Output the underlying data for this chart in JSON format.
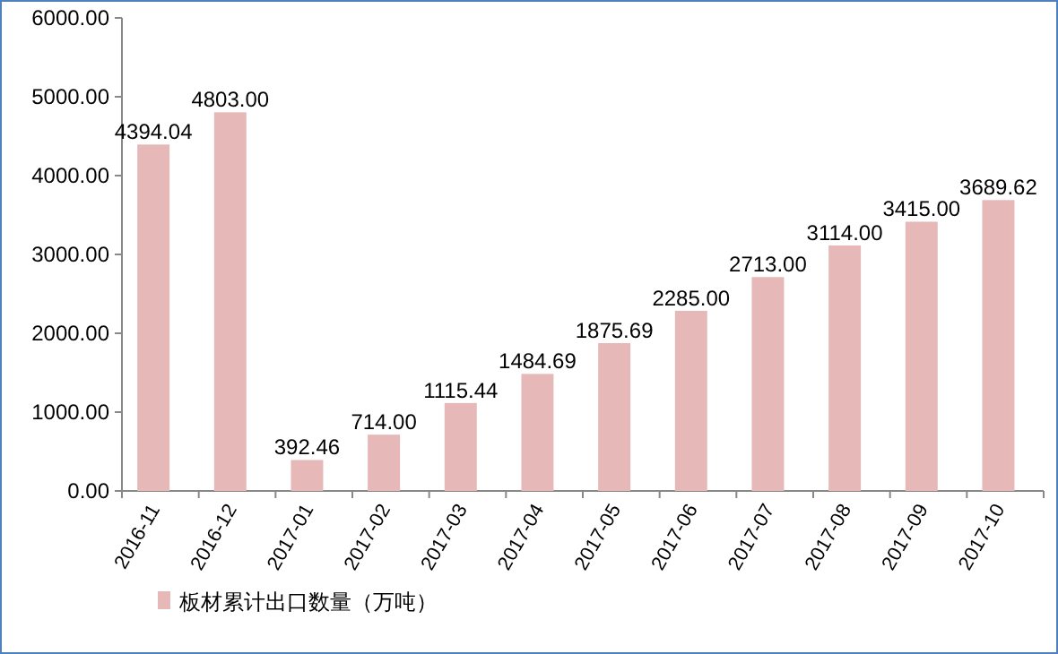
{
  "chart_data": {
    "type": "bar",
    "categories": [
      "2016-11",
      "2016-12",
      "2017-01",
      "2017-02",
      "2017-03",
      "2017-04",
      "2017-05",
      "2017-06",
      "2017-07",
      "2017-08",
      "2017-09",
      "2017-10"
    ],
    "series": [
      {
        "name": "板材累计出口数量（万吨）",
        "color": "#e6b9b8",
        "values": [
          4394.04,
          4803.0,
          392.46,
          714.0,
          1115.44,
          1484.69,
          1875.69,
          2285.0,
          2713.0,
          3114.0,
          3415.0,
          3689.62
        ],
        "value_labels": [
          "4394.04",
          "4803.00",
          "392.46",
          "714.00",
          "1115.44",
          "1484.69",
          "1875.69",
          "2285.00",
          "2713.00",
          "3114.00",
          "3415.00",
          "3689.62"
        ]
      }
    ],
    "ylim": [
      0,
      6000
    ],
    "yticks": [
      {
        "value": 0,
        "label": "0.00"
      },
      {
        "value": 1000,
        "label": "1000.00"
      },
      {
        "value": 2000,
        "label": "2000.00"
      },
      {
        "value": 3000,
        "label": "3000.00"
      },
      {
        "value": 4000,
        "label": "4000.00"
      },
      {
        "value": 5000,
        "label": "5000.00"
      },
      {
        "value": 6000,
        "label": "6000.00"
      }
    ],
    "legend": "bottom left"
  }
}
